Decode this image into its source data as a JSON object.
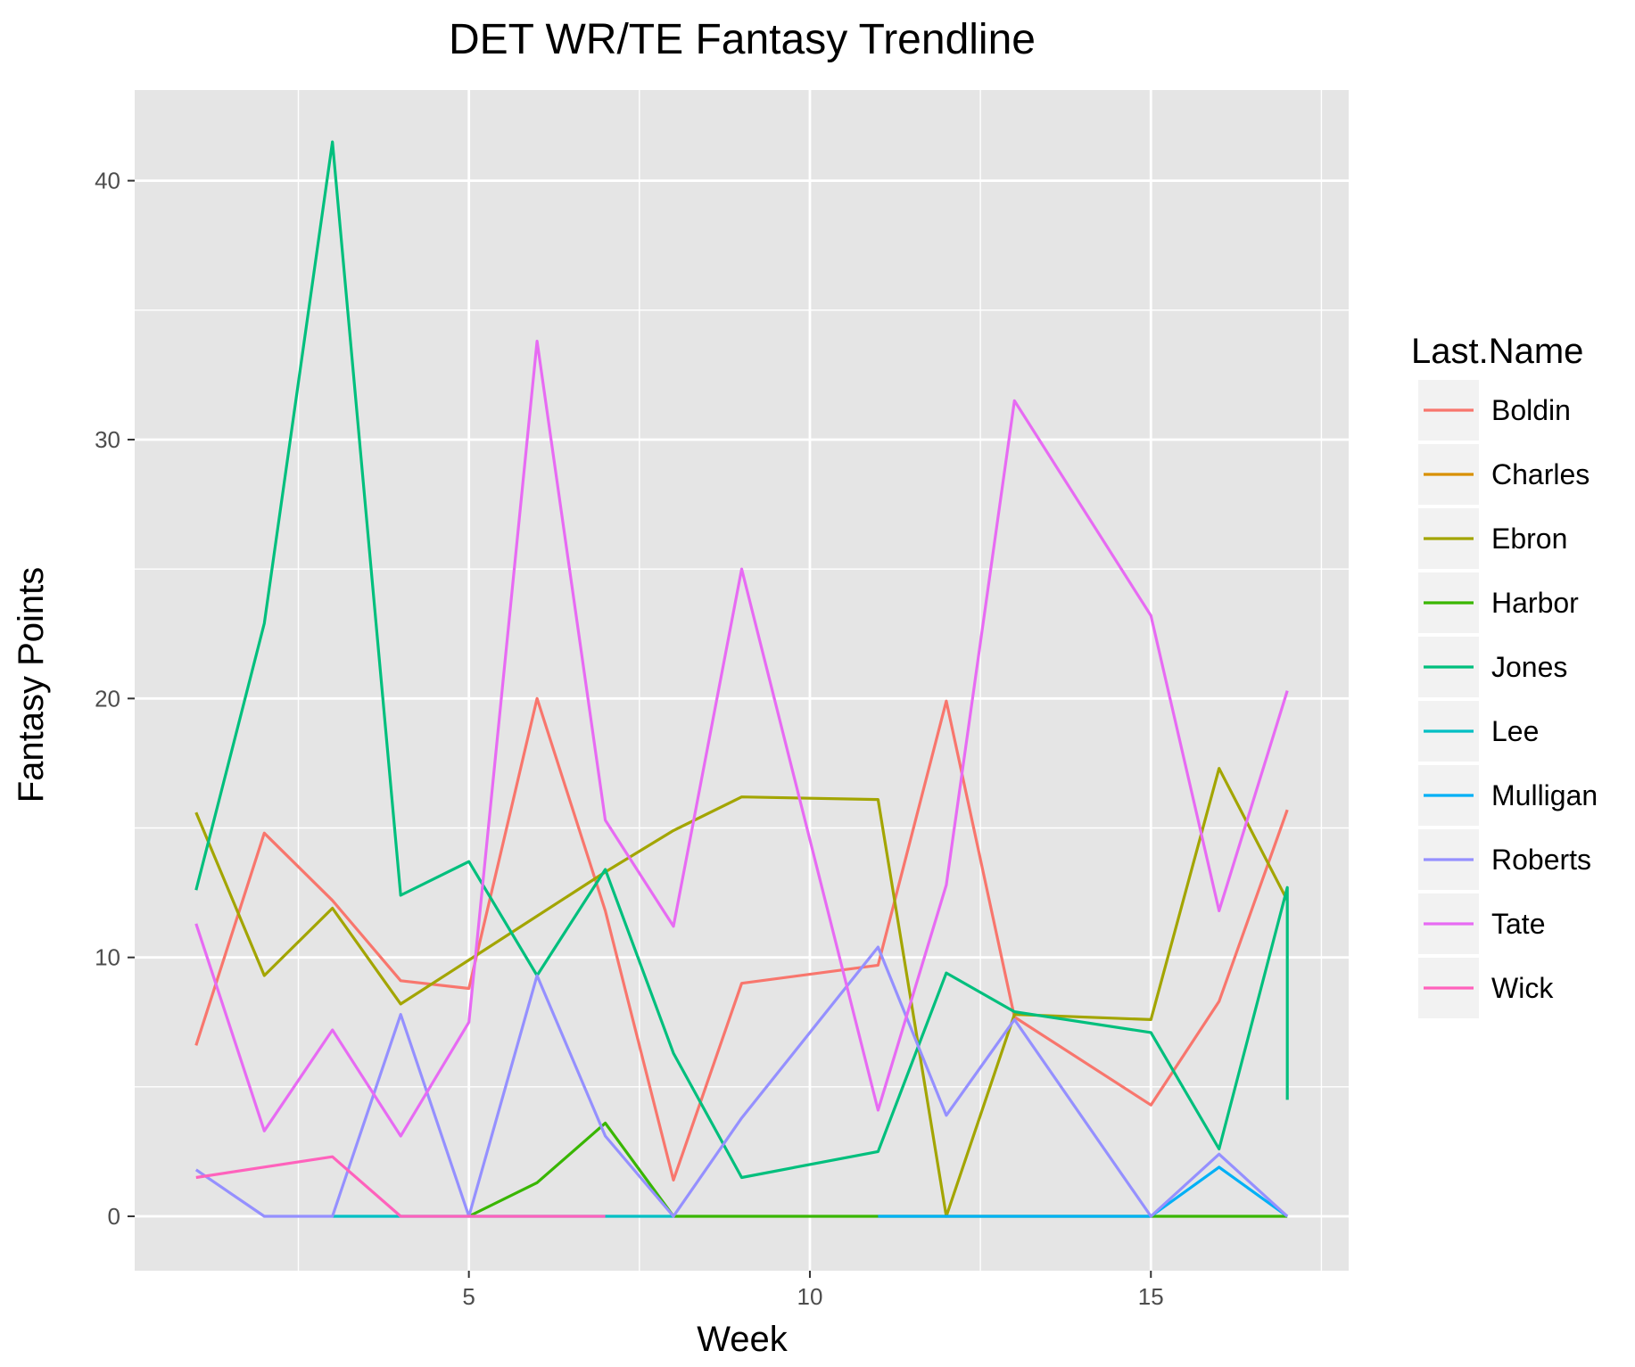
{
  "chart_data": {
    "type": "line",
    "title": "DET WR/TE Fantasy Trendline",
    "xlabel": "Week",
    "ylabel": "Fantasy Points",
    "xlim": [
      0.1,
      17.9
    ],
    "ylim": [
      -2.1,
      43.5
    ],
    "x_ticks": [
      5,
      10,
      15
    ],
    "y_ticks": [
      0,
      10,
      20,
      30,
      40
    ],
    "x_minor": [
      2.5,
      7.5,
      12.5,
      17.5
    ],
    "y_minor": [
      5,
      15,
      25,
      35
    ],
    "grid": true,
    "panel_background": "#e5e5e5",
    "legend": {
      "title": "Last.Name",
      "position": "right"
    },
    "series": [
      {
        "name": "Boldin",
        "color": "#f8766d",
        "x": [
          1,
          2,
          3,
          4,
          5,
          6,
          7,
          8,
          9,
          11,
          12,
          13,
          15,
          16,
          17
        ],
        "y": [
          6.6,
          14.8,
          12.2,
          9.1,
          8.8,
          20.0,
          11.8,
          1.4,
          9.0,
          9.7,
          19.9,
          7.7,
          4.3,
          8.3,
          15.7
        ]
      },
      {
        "name": "Charles",
        "color": "#d89000",
        "x": [],
        "y": []
      },
      {
        "name": "Ebron",
        "color": "#a3a500",
        "x": [
          1,
          2,
          3,
          4,
          5,
          7,
          8,
          9,
          11,
          12,
          13,
          15,
          16,
          17
        ],
        "y": [
          15.6,
          9.3,
          11.9,
          8.2,
          9.9,
          13.3,
          14.9,
          16.2,
          16.1,
          0.0,
          7.8,
          7.6,
          17.3,
          12.2
        ]
      },
      {
        "name": "Harbor",
        "color": "#39b600",
        "x": [
          5,
          6,
          7,
          8,
          17
        ],
        "y": [
          0.0,
          1.3,
          3.6,
          0.0,
          0.0
        ]
      },
      {
        "name": "Jones",
        "color": "#00bf7d",
        "x": [
          1,
          2,
          3,
          4,
          5,
          6,
          7,
          8,
          9,
          11,
          12,
          13,
          15,
          16,
          17,
          17
        ],
        "y": [
          12.6,
          22.9,
          41.5,
          12.4,
          13.7,
          9.3,
          13.4,
          6.3,
          1.5,
          2.5,
          9.4,
          7.9,
          7.1,
          2.6,
          12.7,
          4.5
        ]
      },
      {
        "name": "Lee",
        "color": "#00bfc4",
        "x": [
          3,
          4,
          7,
          8
        ],
        "y": [
          0.0,
          0.0,
          0.0,
          0.0
        ]
      },
      {
        "name": "Mulligan",
        "color": "#00b0f6",
        "x": [
          11,
          15,
          16,
          17
        ],
        "y": [
          0.0,
          0.0,
          1.9,
          0.0
        ]
      },
      {
        "name": "Roberts",
        "color": "#9590ff",
        "x": [
          1,
          2,
          3,
          4,
          5,
          6,
          7,
          8,
          9,
          11,
          12,
          13,
          15,
          16,
          17
        ],
        "y": [
          1.8,
          0.0,
          0.0,
          7.8,
          0.0,
          9.3,
          3.1,
          0.0,
          3.8,
          10.4,
          3.9,
          7.6,
          0.0,
          2.4,
          0.0
        ]
      },
      {
        "name": "Tate",
        "color": "#e76bf3",
        "x": [
          1,
          2,
          3,
          4,
          5,
          6,
          7,
          8,
          9,
          11,
          12,
          13,
          15,
          16,
          17
        ],
        "y": [
          11.3,
          3.3,
          7.2,
          3.1,
          7.5,
          33.8,
          15.3,
          11.2,
          25.0,
          4.1,
          12.8,
          31.5,
          23.2,
          11.8,
          20.3
        ]
      },
      {
        "name": "Wick",
        "color": "#ff62bc",
        "x": [
          1,
          3,
          4,
          7
        ],
        "y": [
          1.5,
          2.3,
          0.0,
          0.0
        ]
      }
    ]
  }
}
